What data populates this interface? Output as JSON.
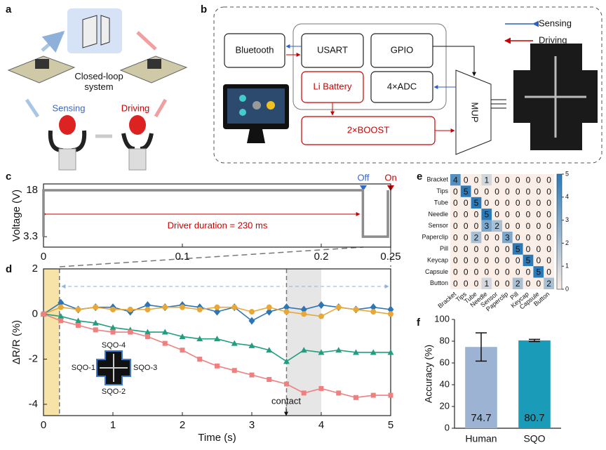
{
  "panel_labels": [
    "a",
    "b",
    "c",
    "d",
    "e",
    "f"
  ],
  "diagram_a": {
    "center": "Closed-loop\nsystem",
    "sensing": "Sensing",
    "driving": "Driving"
  },
  "diagram_b": {
    "bluetooth": "Bluetooth",
    "usart": "USART",
    "gpio": "GPIO",
    "battery": "Li Battery",
    "adc": "4×ADC",
    "boost": "2×BOOST",
    "mup": "MUP",
    "legend_sensing": "Sensing",
    "legend_driving": "Driving"
  },
  "chart_data": [
    {
      "type": "line",
      "ylabel": "Voltage (V)",
      "xlim": [
        0,
        0.25
      ],
      "xticks": [
        0,
        0.1,
        0.2,
        0.25
      ],
      "ylim": [
        0,
        20
      ],
      "yticks": [
        3.3,
        18
      ],
      "x": [
        0,
        0,
        0.23,
        0.23,
        0.248,
        0.248
      ],
      "series": [
        {
          "color": "#8c8c8c",
          "values": [
            3.3,
            18,
            18,
            3.3,
            3.3,
            18
          ]
        }
      ],
      "annotation": "Driver duration = 230 ms",
      "off_label": "Off",
      "on_label": "On"
    },
    {
      "type": "line",
      "xlabel": "Time (s)",
      "ylabel": "ΔR/R (%)",
      "xlim": [
        0,
        5
      ],
      "xticks": [
        0,
        1,
        2,
        3,
        4,
        5
      ],
      "ylim": [
        -4.5,
        2
      ],
      "yticks": [
        -4,
        -2,
        0,
        2
      ],
      "spans": [
        {
          "from": 0,
          "to": 0.23,
          "color": "#f7e3a8"
        },
        {
          "from": 3.5,
          "to": 4,
          "color": "#e6e6e6"
        }
      ],
      "x": [
        0,
        0.25,
        0.5,
        0.75,
        1,
        1.25,
        1.5,
        1.75,
        2,
        2.25,
        2.5,
        2.75,
        3,
        3.25,
        3.5,
        3.75,
        4,
        4.25,
        4.5,
        4.75,
        5
      ],
      "series": [
        {
          "name": "SQO-3",
          "color": "#2e75b6",
          "marker": "diamond",
          "values": [
            0,
            0.5,
            0.2,
            0.3,
            0.3,
            0.1,
            0.4,
            0.3,
            0.4,
            0.3,
            0.1,
            0.3,
            -0.3,
            0.1,
            0.3,
            0.2,
            0.4,
            0.3,
            0.2,
            0.3,
            0.2
          ]
        },
        {
          "name": "SQO-2",
          "color": "#e8a838",
          "marker": "circle",
          "values": [
            0,
            0.3,
            0.2,
            0.3,
            0.2,
            0.2,
            0.2,
            0.3,
            0.3,
            0.2,
            0.3,
            0.3,
            0.1,
            0.3,
            0.1,
            0,
            -0.1,
            0.3,
            0.2,
            0.1,
            0
          ]
        },
        {
          "name": "SQO-1",
          "color": "#1f9e80",
          "marker": "triangle",
          "values": [
            0,
            -0.1,
            -0.3,
            -0.4,
            -0.6,
            -0.7,
            -0.8,
            -0.8,
            -1.0,
            -1.1,
            -1.1,
            -1.3,
            -1.4,
            -1.6,
            -2.1,
            -1.6,
            -1.7,
            -1.6,
            -1.7,
            -1.7,
            -1.7
          ]
        },
        {
          "name": "SQO-4",
          "color": "#ee8080",
          "marker": "square",
          "values": [
            0,
            -0.3,
            -0.5,
            -0.7,
            -0.8,
            -0.8,
            -1.0,
            -1.3,
            -1.6,
            -2.0,
            -2.3,
            -2.5,
            -2.7,
            -2.9,
            -3.1,
            -3.5,
            -3.3,
            -3.5,
            -3.7,
            -3.6,
            -3.6
          ]
        }
      ],
      "annotation": "contact"
    },
    {
      "type": "heatmap",
      "categories": [
        "Bracket",
        "Tips",
        "Tube",
        "Needle",
        "Sensor",
        "Paperclip",
        "Pill",
        "Keycap",
        "Capsule",
        "Button"
      ],
      "values": [
        [
          4,
          0,
          0,
          1,
          0,
          0,
          0,
          0,
          0,
          0
        ],
        [
          0,
          5,
          0,
          0,
          0,
          0,
          0,
          0,
          0,
          0
        ],
        [
          0,
          0,
          5,
          0,
          0,
          0,
          0,
          0,
          0,
          0
        ],
        [
          0,
          0,
          0,
          5,
          0,
          0,
          0,
          0,
          0,
          0
        ],
        [
          0,
          0,
          0,
          3,
          2,
          0,
          0,
          0,
          0,
          0
        ],
        [
          0,
          0,
          2,
          0,
          0,
          3,
          0,
          0,
          0,
          0
        ],
        [
          0,
          0,
          0,
          0,
          0,
          0,
          5,
          0,
          0,
          0
        ],
        [
          0,
          0,
          0,
          0,
          0,
          0,
          0,
          5,
          0,
          0
        ],
        [
          0,
          0,
          0,
          0,
          0,
          0,
          0,
          0,
          5,
          0
        ],
        [
          0,
          0,
          0,
          1,
          0,
          0,
          2,
          0,
          0,
          2
        ]
      ],
      "clim": [
        0,
        5
      ],
      "cticks": [
        0,
        1,
        2,
        3,
        4,
        5
      ],
      "colormap": [
        "#fbeee6",
        "#2a7ab9"
      ]
    },
    {
      "type": "bar",
      "ylabel": "Accuracy (%)",
      "categories": [
        "Human",
        "SQO"
      ],
      "values": [
        74.7,
        80.7
      ],
      "errors": [
        13,
        1
      ],
      "colors": [
        "#9db3d3",
        "#1a9cb8"
      ],
      "ylim": [
        0,
        100
      ],
      "yticks": [
        0,
        20,
        40,
        60,
        80,
        100
      ]
    }
  ]
}
